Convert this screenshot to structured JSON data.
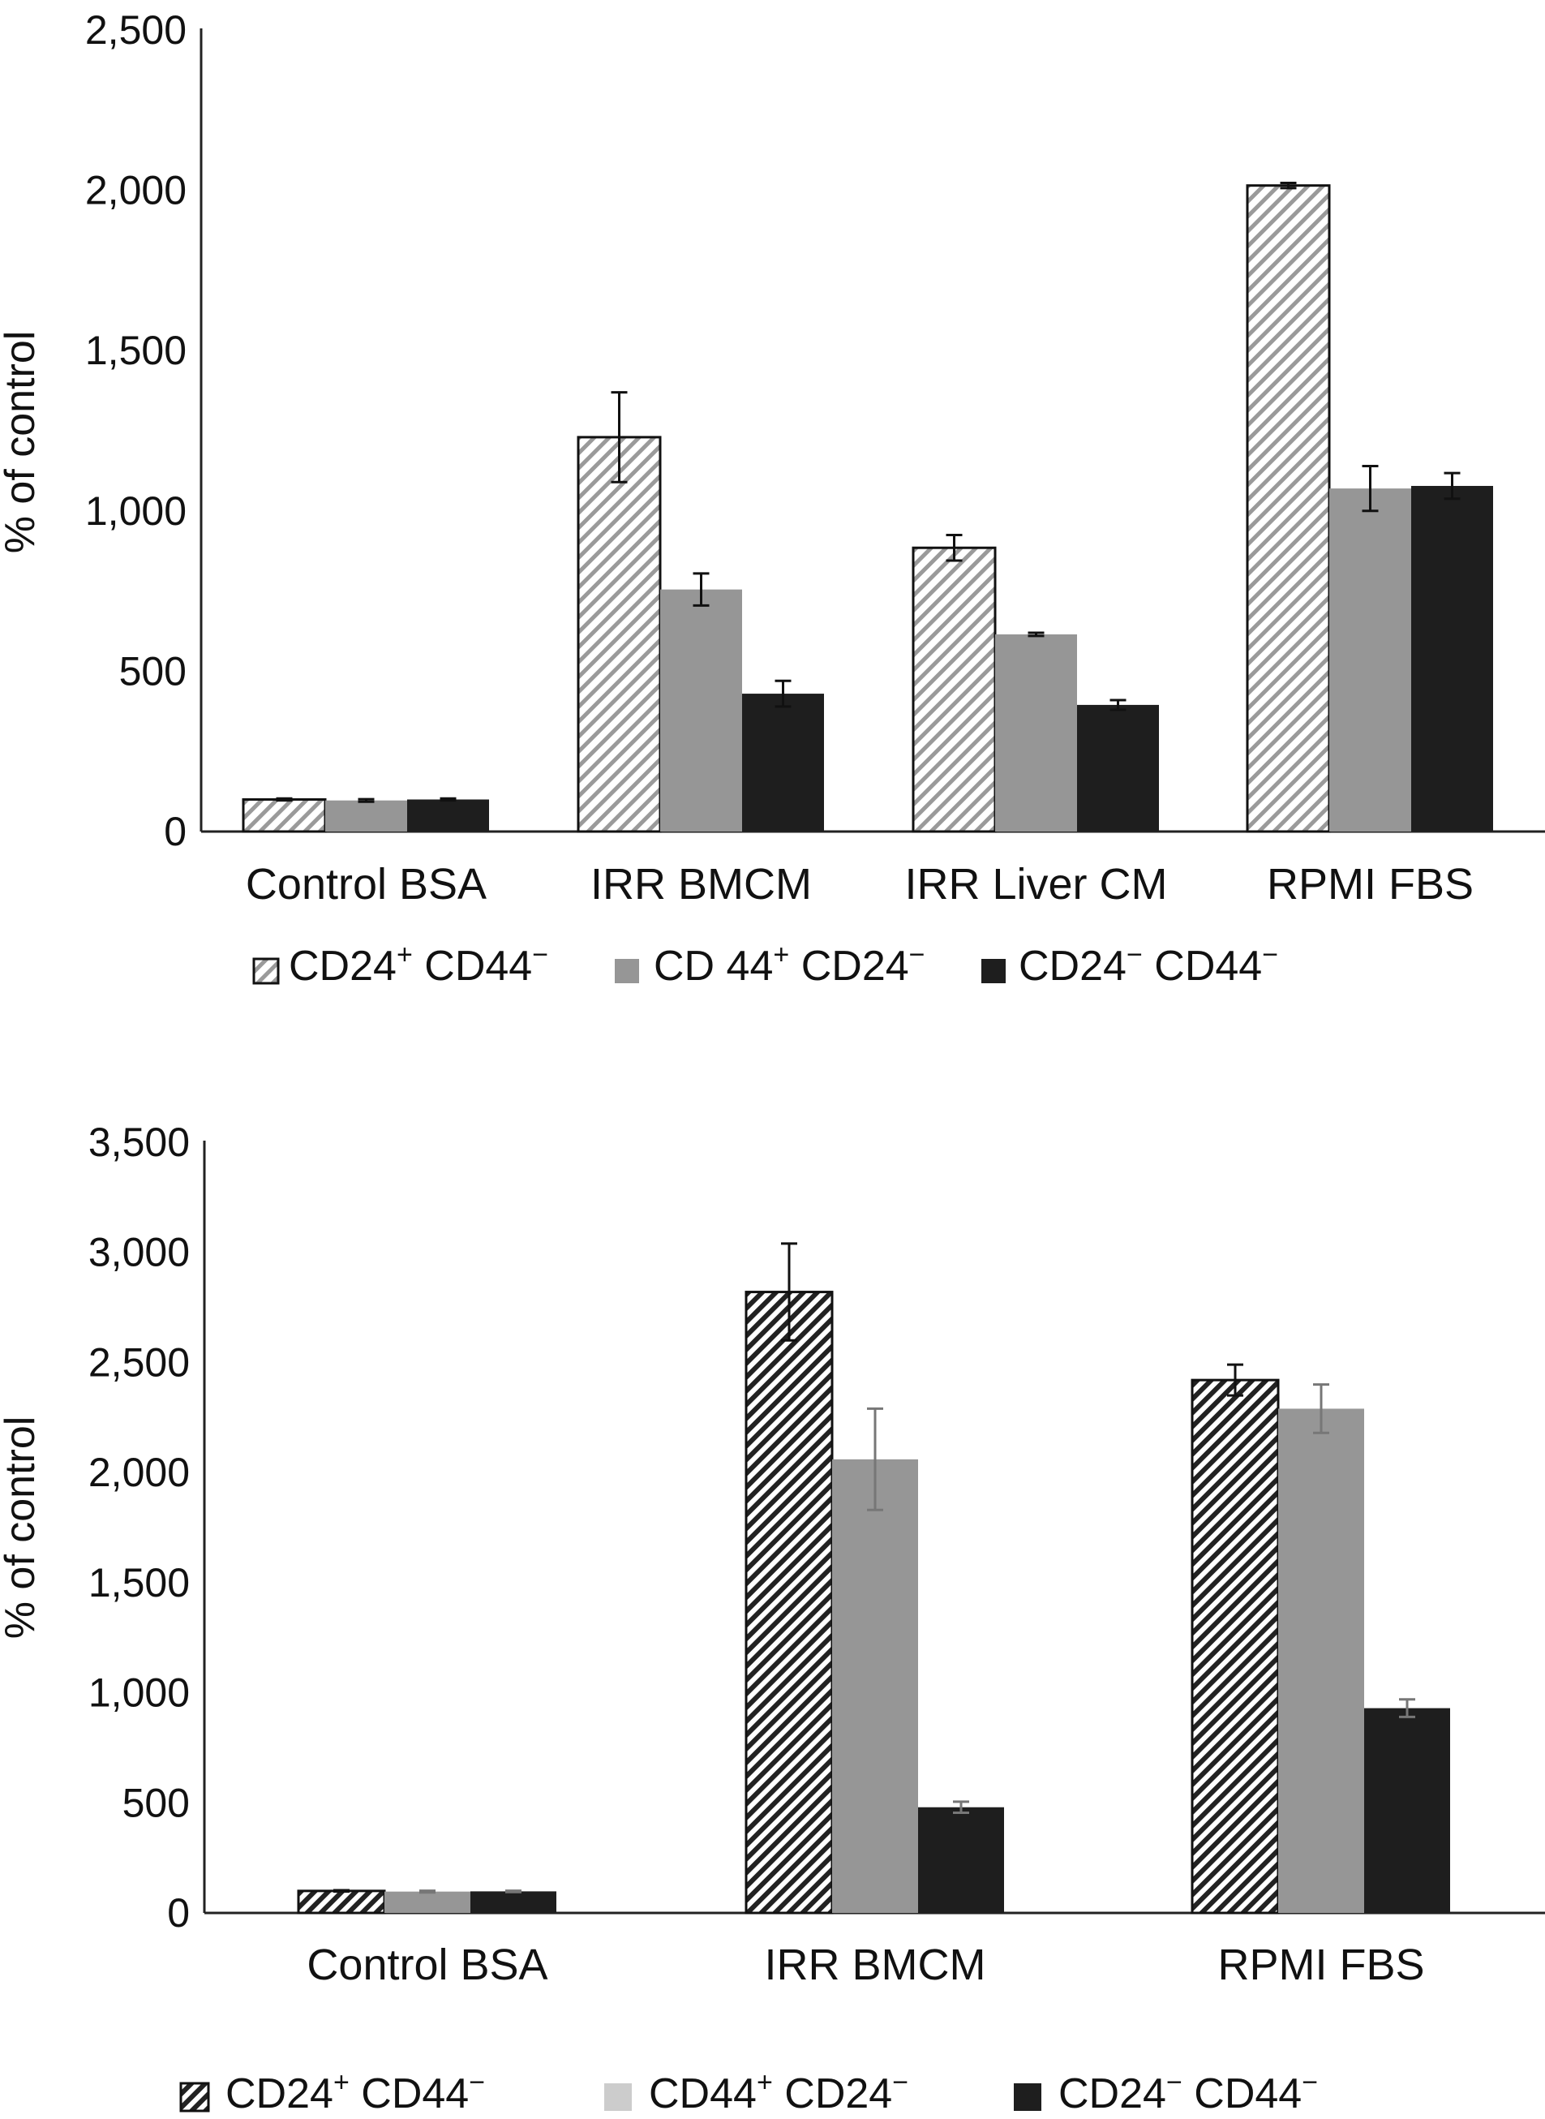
{
  "chart_data": [
    {
      "type": "bar",
      "ylabel": "% of control",
      "ylim": [
        0,
        2500
      ],
      "yticks": [
        0,
        500,
        1000,
        1500,
        2000,
        2500
      ],
      "ytick_labels": [
        "0",
        "500",
        "1,000",
        "1,500",
        "2,000",
        "2,500"
      ],
      "categories": [
        "Control BSA",
        "IRR BMCM",
        "IRR Liver CM",
        "RPMI FBS"
      ],
      "series": [
        {
          "name": "CD24+ CD44−",
          "label_main": "CD24",
          "label_sup": "+",
          "label_rest": " CD44",
          "label_end": "−",
          "style": "hatched",
          "values": [
            100,
            1230,
            885,
            2015
          ],
          "errors": [
            3,
            140,
            40,
            8
          ]
        },
        {
          "name": "CD 44+ CD24−",
          "label_main": "CD 44",
          "label_sup": "+",
          "label_rest": " CD24",
          "label_end": "−",
          "style": "solid",
          "color": "#969696",
          "values": [
            97,
            755,
            615,
            1070
          ],
          "errors": [
            4,
            50,
            5,
            70
          ]
        },
        {
          "name": "CD24− CD44−",
          "label_main": "CD24",
          "label_sup": "−",
          "label_rest": " CD44",
          "label_end": "−",
          "style": "solid",
          "color": "#1e1e1e",
          "values": [
            100,
            430,
            395,
            1078
          ],
          "errors": [
            3,
            40,
            15,
            40
          ]
        }
      ],
      "legend_position": "bottom",
      "grid": false
    },
    {
      "type": "bar",
      "ylabel": "% of control",
      "ylim": [
        0,
        3500
      ],
      "yticks": [
        0,
        500,
        1000,
        1500,
        2000,
        2500,
        3000,
        3500
      ],
      "ytick_labels": [
        "0",
        "500",
        "1,000",
        "1,500",
        "2,000",
        "2,500",
        "3,000",
        "3,500"
      ],
      "categories": [
        "Control BSA",
        "IRR BMCM",
        "RPMI FBS"
      ],
      "series": [
        {
          "name": "CD24+ CD44−",
          "label_main": "CD24",
          "label_sup": "+",
          "label_rest": " CD44",
          "label_end": "−",
          "style": "hatched",
          "values": [
            100,
            2820,
            2420
          ],
          "errors": [
            3,
            220,
            70
          ]
        },
        {
          "name": "CD44+ CD24−",
          "label_main": "CD44",
          "label_sup": "+",
          "label_rest": " CD24",
          "label_end": "−",
          "style": "solid",
          "color": "#969696",
          "legend_color": "#cccccc",
          "values": [
            97,
            2060,
            2290
          ],
          "errors": [
            4,
            230,
            110
          ]
        },
        {
          "name": "CD24− CD44−",
          "label_main": "CD24",
          "label_sup": "−",
          "label_rest": " CD44",
          "label_end": "−",
          "style": "solid",
          "color": "#1e1e1e",
          "values": [
            98,
            480,
            930
          ],
          "errors": [
            3,
            25,
            40
          ]
        }
      ],
      "legend_position": "bottom",
      "grid": false
    }
  ]
}
